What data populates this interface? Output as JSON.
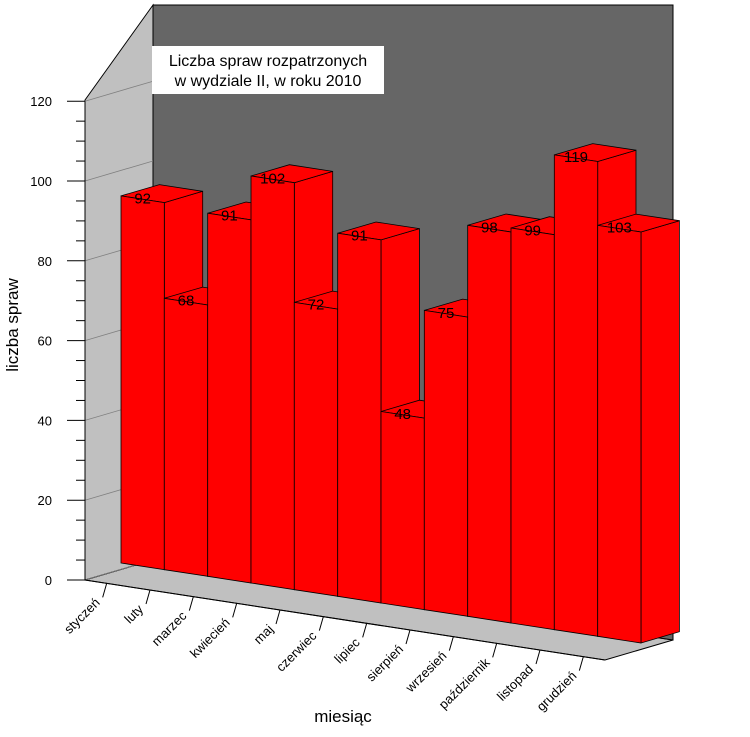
{
  "chart_data": {
    "type": "bar",
    "title_lines": [
      "Liczba spraw rozpatrzonych",
      "w  wydziale II, w roku 2010"
    ],
    "xlabel": "miesiąc",
    "ylabel": "liczba spraw",
    "categories": [
      "styczeń",
      "luty",
      "marzec",
      "kwiecień",
      "maj",
      "czerwiec",
      "lipiec",
      "sierpień",
      "wrzesień",
      "październik",
      "listopad",
      "grudzień"
    ],
    "values": [
      92,
      68,
      91,
      102,
      72,
      91,
      48,
      75,
      98,
      99,
      119,
      103
    ],
    "ylim": [
      0,
      120
    ],
    "yticks": [
      0,
      20,
      40,
      60,
      80,
      100,
      120
    ],
    "style": "3d-bar",
    "bar_color": "#ff0000",
    "back_wall_color": "#666666",
    "side_wall_color": "#c0c0c0",
    "floor_color": "#c0c0c0",
    "grid": false,
    "legend": "none"
  }
}
